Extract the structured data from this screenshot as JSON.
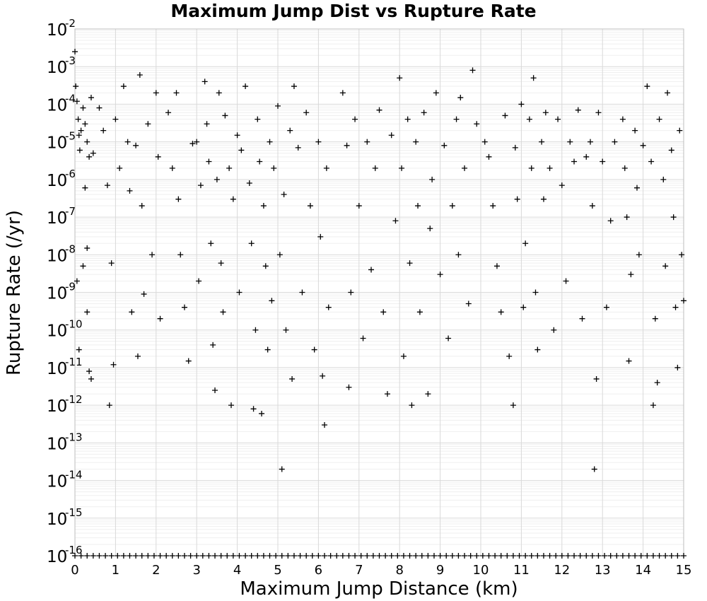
{
  "chart_data": {
    "type": "scatter",
    "title": "Maximum Jump Dist vs Rupture Rate",
    "xlabel": "Maximum Jump Distance (km)",
    "ylabel": "Rupture Rate (/yr)",
    "xlim": [
      0,
      15
    ],
    "ylim": [
      1e-16,
      0.01
    ],
    "yscale": "log",
    "grid": true,
    "legend": "none",
    "marker": "plus",
    "marker_color": "#000000",
    "x_ticks": [
      "0",
      "1",
      "2",
      "3",
      "4",
      "5",
      "6",
      "7",
      "8",
      "9",
      "10",
      "11",
      "12",
      "13",
      "14",
      "15"
    ],
    "y_tick_base": "10",
    "y_tick_exponents": [
      "-2",
      "-3",
      "-4",
      "-5",
      "-6",
      "-7",
      "-8",
      "-9",
      "-10",
      "-11",
      "-12",
      "-13",
      "-14",
      "-15",
      "-16"
    ],
    "series": [
      {
        "points": [
          [
            0.0,
            0.0025
          ],
          [
            0.02,
            0.0003
          ],
          [
            0.05,
            0.00012
          ],
          [
            0.08,
            4e-05
          ],
          [
            0.1,
            1.5e-05
          ],
          [
            0.12,
            6e-06
          ],
          [
            0.15,
            2e-05
          ],
          [
            0.2,
            8e-05
          ],
          [
            0.25,
            3e-05
          ],
          [
            0.3,
            1e-05
          ],
          [
            0.35,
            4e-06
          ],
          [
            0.4,
            0.00015
          ],
          [
            0.45,
            5e-06
          ],
          [
            0.05,
            2e-09
          ],
          [
            0.1,
            3e-11
          ],
          [
            0.2,
            5e-09
          ],
          [
            0.3,
            3e-10
          ],
          [
            0.35,
            8e-12
          ],
          [
            0.4,
            5e-12
          ],
          [
            0.25,
            6e-07
          ],
          [
            0.3,
            1.5e-08
          ],
          [
            0.6,
            8e-05
          ],
          [
            0.7,
            2e-05
          ],
          [
            0.8,
            7e-07
          ],
          [
            0.85,
            1e-12
          ],
          [
            0.9,
            6e-09
          ],
          [
            0.95,
            1.2e-11
          ],
          [
            1.0,
            4e-05
          ],
          [
            1.1,
            2e-06
          ],
          [
            1.2,
            0.0003
          ],
          [
            1.3,
            1e-05
          ],
          [
            1.35,
            5e-07
          ],
          [
            1.4,
            3e-10
          ],
          [
            1.5,
            8e-06
          ],
          [
            1.55,
            2e-11
          ],
          [
            1.6,
            0.0006
          ],
          [
            1.65,
            2e-07
          ],
          [
            1.7,
            9e-10
          ],
          [
            1.8,
            3e-05
          ],
          [
            1.9,
            1e-08
          ],
          [
            2.0,
            0.0002
          ],
          [
            2.05,
            4e-06
          ],
          [
            2.1,
            2e-10
          ],
          [
            2.3,
            6e-05
          ],
          [
            2.4,
            2e-06
          ],
          [
            2.5,
            0.0002
          ],
          [
            2.55,
            3e-07
          ],
          [
            2.6,
            1e-08
          ],
          [
            2.7,
            4e-10
          ],
          [
            2.8,
            1.5e-11
          ],
          [
            2.9,
            9e-06
          ],
          [
            3.0,
            1e-05
          ],
          [
            3.05,
            2e-09
          ],
          [
            3.1,
            7e-07
          ],
          [
            3.2,
            0.0004
          ],
          [
            3.25,
            3e-05
          ],
          [
            3.3,
            3e-06
          ],
          [
            3.35,
            2e-08
          ],
          [
            3.4,
            4e-11
          ],
          [
            3.45,
            2.5e-12
          ],
          [
            3.5,
            1e-06
          ],
          [
            3.55,
            0.0002
          ],
          [
            3.6,
            6e-09
          ],
          [
            3.65,
            3e-10
          ],
          [
            3.7,
            5e-05
          ],
          [
            3.8,
            2e-06
          ],
          [
            3.85,
            1e-12
          ],
          [
            3.9,
            3e-07
          ],
          [
            4.0,
            1.5e-05
          ],
          [
            4.05,
            1e-09
          ],
          [
            4.1,
            6e-06
          ],
          [
            4.2,
            0.0003
          ],
          [
            4.3,
            8e-07
          ],
          [
            4.35,
            2e-08
          ],
          [
            4.4,
            8e-13
          ],
          [
            4.45,
            1e-10
          ],
          [
            4.5,
            4e-05
          ],
          [
            4.55,
            3e-06
          ],
          [
            4.6,
            6e-13
          ],
          [
            4.65,
            2e-07
          ],
          [
            4.7,
            5e-09
          ],
          [
            4.75,
            3e-11
          ],
          [
            4.8,
            1e-05
          ],
          [
            4.85,
            6e-10
          ],
          [
            4.9,
            2e-06
          ],
          [
            5.0,
            9e-05
          ],
          [
            5.05,
            1e-08
          ],
          [
            5.1,
            2e-14
          ],
          [
            5.15,
            4e-07
          ],
          [
            5.2,
            1e-10
          ],
          [
            5.3,
            2e-05
          ],
          [
            5.35,
            5e-12
          ],
          [
            5.4,
            0.0003
          ],
          [
            5.5,
            7e-06
          ],
          [
            5.6,
            1e-09
          ],
          [
            5.7,
            6e-05
          ],
          [
            5.8,
            2e-07
          ],
          [
            5.9,
            3e-11
          ],
          [
            6.0,
            1e-05
          ],
          [
            6.05,
            3e-08
          ],
          [
            6.1,
            6e-12
          ],
          [
            6.15,
            3e-13
          ],
          [
            6.2,
            2e-06
          ],
          [
            6.25,
            4e-10
          ],
          [
            6.6,
            0.0002
          ],
          [
            6.7,
            8e-06
          ],
          [
            6.75,
            3e-12
          ],
          [
            6.8,
            1e-09
          ],
          [
            6.9,
            4e-05
          ],
          [
            7.0,
            2e-07
          ],
          [
            7.1,
            6e-11
          ],
          [
            7.2,
            1e-05
          ],
          [
            7.3,
            4e-09
          ],
          [
            7.4,
            2e-06
          ],
          [
            7.5,
            7e-05
          ],
          [
            7.6,
            3e-10
          ],
          [
            7.7,
            2e-12
          ],
          [
            7.8,
            1.5e-05
          ],
          [
            7.9,
            8e-08
          ],
          [
            8.0,
            0.0005
          ],
          [
            8.05,
            2e-06
          ],
          [
            8.1,
            2e-11
          ],
          [
            8.2,
            4e-05
          ],
          [
            8.25,
            6e-09
          ],
          [
            8.3,
            1e-12
          ],
          [
            8.4,
            1e-05
          ],
          [
            8.45,
            2e-07
          ],
          [
            8.5,
            3e-10
          ],
          [
            8.6,
            6e-05
          ],
          [
            8.7,
            2e-12
          ],
          [
            8.75,
            5e-08
          ],
          [
            8.8,
            1e-06
          ],
          [
            8.9,
            0.0002
          ],
          [
            9.0,
            3e-09
          ],
          [
            9.1,
            8e-06
          ],
          [
            9.2,
            6e-11
          ],
          [
            9.3,
            2e-07
          ],
          [
            9.4,
            4e-05
          ],
          [
            9.45,
            1e-08
          ],
          [
            9.5,
            0.00015
          ],
          [
            9.6,
            2e-06
          ],
          [
            9.7,
            5e-10
          ],
          [
            9.8,
            0.0008
          ],
          [
            9.9,
            3e-05
          ],
          [
            10.1,
            1e-05
          ],
          [
            10.2,
            4e-06
          ],
          [
            10.3,
            2e-07
          ],
          [
            10.4,
            5e-09
          ],
          [
            10.5,
            3e-10
          ],
          [
            10.6,
            5e-05
          ],
          [
            10.7,
            2e-11
          ],
          [
            10.8,
            1e-12
          ],
          [
            10.85,
            7e-06
          ],
          [
            10.9,
            3e-07
          ],
          [
            11.0,
            0.0001
          ],
          [
            11.05,
            4e-10
          ],
          [
            11.1,
            2e-08
          ],
          [
            11.2,
            4e-05
          ],
          [
            11.25,
            2e-06
          ],
          [
            11.3,
            0.0005
          ],
          [
            11.35,
            1e-09
          ],
          [
            11.4,
            3e-11
          ],
          [
            11.5,
            1e-05
          ],
          [
            11.55,
            3e-07
          ],
          [
            11.6,
            6e-05
          ],
          [
            11.7,
            2e-06
          ],
          [
            11.8,
            1e-10
          ],
          [
            11.9,
            4e-05
          ],
          [
            12.0,
            7e-07
          ],
          [
            12.1,
            2e-09
          ],
          [
            12.2,
            1e-05
          ],
          [
            12.3,
            3e-06
          ],
          [
            12.4,
            7e-05
          ],
          [
            12.5,
            2e-10
          ],
          [
            12.6,
            4e-06
          ],
          [
            12.7,
            1e-05
          ],
          [
            12.75,
            2e-07
          ],
          [
            12.8,
            2e-14
          ],
          [
            12.85,
            5e-12
          ],
          [
            12.9,
            6e-05
          ],
          [
            13.0,
            3e-06
          ],
          [
            13.1,
            4e-10
          ],
          [
            13.2,
            8e-08
          ],
          [
            13.3,
            1e-05
          ],
          [
            13.5,
            4e-05
          ],
          [
            13.55,
            2e-06
          ],
          [
            13.6,
            1e-07
          ],
          [
            13.65,
            1.5e-11
          ],
          [
            13.7,
            3e-09
          ],
          [
            13.8,
            2e-05
          ],
          [
            13.85,
            6e-07
          ],
          [
            13.9,
            1e-08
          ],
          [
            14.0,
            8e-06
          ],
          [
            14.1,
            0.0003
          ],
          [
            14.2,
            3e-06
          ],
          [
            14.25,
            1e-12
          ],
          [
            14.3,
            2e-10
          ],
          [
            14.35,
            4e-12
          ],
          [
            14.4,
            4e-05
          ],
          [
            14.5,
            1e-06
          ],
          [
            14.55,
            5e-09
          ],
          [
            14.6,
            0.0002
          ],
          [
            14.7,
            6e-06
          ],
          [
            14.75,
            1e-07
          ],
          [
            14.8,
            4e-10
          ],
          [
            14.85,
            1e-11
          ],
          [
            14.9,
            2e-05
          ],
          [
            14.95,
            1e-08
          ],
          [
            15.0,
            6e-10
          ]
        ]
      }
    ],
    "floor_points_x": [
      0.0,
      0.15,
      0.3,
      0.45,
      0.6,
      0.75,
      0.9,
      1.05,
      1.2,
      1.35,
      1.5,
      1.65,
      1.8,
      1.95,
      2.1,
      2.25,
      2.4,
      2.55,
      2.7,
      2.85,
      3.0,
      3.15,
      3.3,
      3.45,
      3.6,
      3.75,
      3.9,
      4.05,
      4.2,
      4.35,
      4.5,
      4.65,
      4.8,
      4.95,
      5.1,
      5.25,
      5.4,
      5.55,
      5.7,
      5.85,
      6.0,
      6.15,
      6.3,
      6.45,
      6.6,
      6.75,
      6.9,
      7.05,
      7.2,
      7.35,
      7.5,
      7.65,
      7.8,
      7.95,
      8.1,
      8.25,
      8.4,
      8.55,
      8.7,
      8.85,
      9.0,
      9.15,
      9.3,
      9.45,
      9.6,
      9.75,
      9.9,
      10.05,
      10.2,
      10.35,
      10.5,
      10.65,
      10.8,
      10.95,
      11.1,
      11.25,
      11.4,
      11.55,
      11.7,
      11.85,
      12.0,
      12.15,
      12.3,
      12.45,
      12.6,
      12.75,
      12.9,
      13.05,
      13.2,
      13.35,
      13.5,
      13.65,
      13.8,
      13.95,
      14.1,
      14.25,
      14.4,
      14.55,
      14.7,
      14.85,
      15.0
    ],
    "floor_value": 1e-16
  }
}
